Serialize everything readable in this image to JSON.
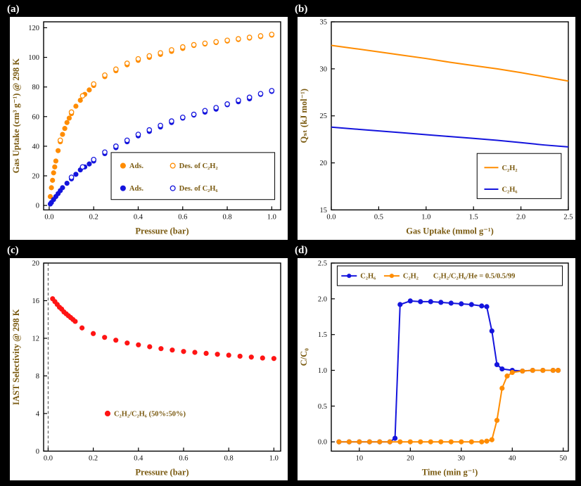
{
  "figure": {
    "panels": [
      {
        "label": "(a)"
      },
      {
        "label": "(b)"
      },
      {
        "label": "(c)"
      },
      {
        "label": "(d)"
      }
    ]
  },
  "colors": {
    "background": "#000000",
    "card": "#ffffff",
    "orange": "#FF8C00",
    "blue": "#1414DD",
    "red": "#FF1414",
    "label_gold": "#7a5a10",
    "tick": "#111111"
  },
  "chart_data": [
    {
      "id": "a",
      "type": "scatter",
      "title": "",
      "xlabel": "Pressure (bar)",
      "ylabel": "Gas Uptake (cm³ g⁻¹) @ 298 K",
      "xlim": [
        -0.025,
        1.04
      ],
      "ylim": [
        -3,
        124
      ],
      "xticks": [
        0.0,
        0.2,
        0.4,
        0.6,
        0.8,
        1.0
      ],
      "xticklabels": [
        "0.0",
        "0.2",
        "0.4",
        "0.6",
        "0.8",
        "1.0"
      ],
      "yticks": [
        0,
        20,
        40,
        60,
        80,
        100,
        120
      ],
      "yticklabels": [
        "0",
        "20",
        "40",
        "60",
        "80",
        "100",
        "120"
      ],
      "grid": false,
      "series": [
        {
          "name": "Ads. C₂H₂",
          "type": "scatter",
          "marker": "filled",
          "color": "#FF8C00",
          "x": [
            0.005,
            0.01,
            0.015,
            0.02,
            0.025,
            0.03,
            0.04,
            0.05,
            0.06,
            0.07,
            0.08,
            0.09,
            0.1,
            0.12,
            0.14,
            0.16,
            0.18,
            0.2,
            0.25,
            0.3,
            0.35,
            0.4,
            0.45,
            0.5,
            0.55,
            0.6,
            0.65,
            0.7,
            0.75,
            0.8,
            0.85,
            0.9,
            0.95,
            1.0
          ],
          "y": [
            6,
            12,
            17,
            22,
            26,
            30,
            37,
            43,
            48,
            52,
            56,
            59,
            62,
            67,
            71,
            75,
            78,
            81,
            87,
            91,
            95,
            98,
            100,
            102,
            104,
            106,
            108,
            109,
            110,
            111,
            112,
            113,
            114,
            115
          ]
        },
        {
          "name": "Des. of C₂H₂",
          "type": "scatter",
          "marker": "open",
          "color": "#FF8C00",
          "x": [
            0.05,
            0.1,
            0.15,
            0.2,
            0.25,
            0.3,
            0.35,
            0.4,
            0.45,
            0.5,
            0.55,
            0.6,
            0.65,
            0.7,
            0.75,
            0.8,
            0.85,
            0.9,
            0.95,
            1.0
          ],
          "y": [
            44,
            63,
            74,
            82,
            88,
            92,
            96,
            99,
            101,
            103,
            105,
            107,
            108.5,
            109.5,
            110.5,
            111.5,
            112.5,
            113.5,
            114.5,
            115.5
          ]
        },
        {
          "name": "Ads. C₂H₆",
          "type": "scatter",
          "marker": "filled",
          "color": "#1414DD",
          "x": [
            0.005,
            0.01,
            0.02,
            0.03,
            0.04,
            0.05,
            0.06,
            0.08,
            0.1,
            0.12,
            0.14,
            0.16,
            0.18,
            0.2,
            0.25,
            0.3,
            0.35,
            0.4,
            0.45,
            0.5,
            0.55,
            0.6,
            0.65,
            0.7,
            0.75,
            0.8,
            0.85,
            0.9,
            0.95,
            1.0
          ],
          "y": [
            1,
            2,
            4,
            6,
            8,
            10,
            12,
            15,
            18,
            21,
            24,
            26,
            28,
            30,
            35,
            39,
            43,
            47,
            50,
            53,
            56,
            59,
            61,
            63,
            65,
            68,
            70,
            72,
            75,
            77
          ]
        },
        {
          "name": "Des. of C₂H₆",
          "type": "scatter",
          "marker": "open",
          "color": "#1414DD",
          "x": [
            0.1,
            0.15,
            0.2,
            0.25,
            0.3,
            0.35,
            0.4,
            0.45,
            0.5,
            0.55,
            0.6,
            0.65,
            0.7,
            0.75,
            0.8,
            0.85,
            0.9,
            0.95,
            1.0
          ],
          "y": [
            19,
            26,
            31,
            36,
            40,
            44,
            48,
            51,
            54,
            57,
            59.5,
            61.5,
            64,
            66,
            68.5,
            71,
            73,
            75.5,
            77.5
          ]
        }
      ],
      "legend": {
        "box": {
          "fx": 0.285,
          "fy": 0.695,
          "fw": 0.69,
          "fh": 0.25
        },
        "items": [
          {
            "fx": 0.335,
            "fy": 0.765,
            "type": "filled",
            "color": "#FF8C00",
            "label": "Ads."
          },
          {
            "fx": 0.545,
            "fy": 0.765,
            "type": "open",
            "color": "#FF8C00",
            "label": "Des. of C₂H₂"
          },
          {
            "fx": 0.335,
            "fy": 0.885,
            "type": "filled",
            "color": "#1414DD",
            "label": "Ads."
          },
          {
            "fx": 0.545,
            "fy": 0.885,
            "type": "open",
            "color": "#1414DD",
            "label": "Des. of C₂H₆"
          }
        ]
      }
    },
    {
      "id": "b",
      "type": "line",
      "title": "",
      "xlabel": "Gas Uptake (mmol g⁻¹)",
      "ylabel": "Qₛₜ (kJ mol⁻¹)",
      "xlim": [
        0,
        2.5
      ],
      "ylim": [
        15,
        35
      ],
      "xticks": [
        0.0,
        0.5,
        1.0,
        1.5,
        2.0,
        2.5
      ],
      "xticklabels": [
        "0.0",
        "0.5",
        "1.0",
        "1.5",
        "2.0",
        "2.5"
      ],
      "yticks": [
        15,
        20,
        25,
        30,
        35
      ],
      "yticklabels": [
        "15",
        "20",
        "25",
        "30",
        "35"
      ],
      "grid": false,
      "series": [
        {
          "name": "C₂H₂",
          "type": "line",
          "color": "#FF8C00",
          "width": 2,
          "x": [
            0,
            0.25,
            0.5,
            0.75,
            1.0,
            1.25,
            1.5,
            1.75,
            2.0,
            2.25,
            2.5
          ],
          "y": [
            32.5,
            32.15,
            31.8,
            31.45,
            31.1,
            30.7,
            30.35,
            30.0,
            29.6,
            29.15,
            28.7
          ]
        },
        {
          "name": "C₂H₆",
          "type": "line",
          "color": "#1414DD",
          "width": 2,
          "x": [
            0,
            0.25,
            0.5,
            0.75,
            1.0,
            1.25,
            1.5,
            1.75,
            2.0,
            2.25,
            2.5
          ],
          "y": [
            23.8,
            23.6,
            23.4,
            23.2,
            23.0,
            22.8,
            22.6,
            22.4,
            22.15,
            21.9,
            21.7
          ]
        }
      ],
      "legend": {
        "box": {
          "fx": 0.615,
          "fy": 0.7,
          "fw": 0.355,
          "fh": 0.24
        },
        "items": [
          {
            "fx": 0.675,
            "fy": 0.775,
            "type": "line",
            "color": "#FF8C00",
            "label": "C₂H₂"
          },
          {
            "fx": 0.675,
            "fy": 0.89,
            "type": "line",
            "color": "#1414DD",
            "label": "C₂H₆"
          }
        ]
      }
    },
    {
      "id": "c",
      "type": "scatter",
      "title": "",
      "xlabel": "Pressure (bar)",
      "ylabel": "IAST Selectivity @ 298 K",
      "xlim": [
        -0.02,
        1.03
      ],
      "ylim": [
        0,
        20
      ],
      "xticks": [
        0.0,
        0.2,
        0.4,
        0.6,
        0.8,
        1.0
      ],
      "xticklabels": [
        "0.0",
        "0.2",
        "0.4",
        "0.6",
        "0.8",
        "1.0"
      ],
      "yticks": [
        0,
        4,
        8,
        12,
        16,
        20
      ],
      "yticklabels": [
        "0",
        "4",
        "8",
        "12",
        "16",
        "20"
      ],
      "grid": false,
      "vlines": [
        {
          "x": 0.0,
          "color": "#444444",
          "dash": "4 3"
        }
      ],
      "series": [
        {
          "name": "C₂H₂/C₂H₆ selectivity",
          "type": "scatter",
          "marker": "filled",
          "color": "#FF1414",
          "x": [
            0.02,
            0.03,
            0.04,
            0.05,
            0.06,
            0.07,
            0.08,
            0.09,
            0.1,
            0.11,
            0.12,
            0.15,
            0.2,
            0.25,
            0.3,
            0.35,
            0.4,
            0.45,
            0.5,
            0.55,
            0.6,
            0.65,
            0.7,
            0.75,
            0.8,
            0.85,
            0.9,
            0.95,
            1.0
          ],
          "y": [
            16.2,
            15.9,
            15.6,
            15.3,
            15.1,
            14.8,
            14.6,
            14.4,
            14.2,
            14.0,
            13.8,
            13.1,
            12.5,
            12.1,
            11.8,
            11.5,
            11.3,
            11.1,
            10.9,
            10.75,
            10.6,
            10.5,
            10.4,
            10.3,
            10.2,
            10.1,
            10.0,
            9.9,
            9.85
          ]
        }
      ],
      "legend": {
        "items": [
          {
            "fx": 0.27,
            "fy": 0.8,
            "type": "filled",
            "color": "#FF1414",
            "label": "C₂H₂/C₂H₆ (50%:50%)"
          }
        ]
      }
    },
    {
      "id": "d",
      "type": "line",
      "title": "",
      "xlabel": "Time (min g⁻¹)",
      "ylabel": "C/C₀",
      "xlim": [
        4.5,
        51
      ],
      "ylim": [
        -0.13,
        2.5
      ],
      "xticks": [
        10,
        20,
        30,
        40,
        50
      ],
      "xticklabels": [
        "10",
        "20",
        "30",
        "40",
        "50"
      ],
      "yticks": [
        0.0,
        0.5,
        1.0,
        1.5,
        2.0,
        2.5
      ],
      "yticklabels": [
        "0.0",
        "0.5",
        "1.0",
        "1.5",
        "2.0",
        "2.5"
      ],
      "grid": false,
      "series": [
        {
          "name": "C₂H₆",
          "type": "linemarker",
          "color": "#1414DD",
          "width": 2,
          "r": 3.2,
          "x": [
            6,
            8,
            10,
            12,
            14,
            16,
            17,
            18,
            20,
            22,
            24,
            26,
            28,
            30,
            32,
            34,
            35,
            36,
            37,
            38,
            40,
            42,
            44,
            46,
            48,
            49
          ],
          "y": [
            0,
            0,
            0,
            0,
            0,
            0,
            0.05,
            1.92,
            1.97,
            1.96,
            1.96,
            1.95,
            1.94,
            1.93,
            1.92,
            1.9,
            1.89,
            1.55,
            1.08,
            1.02,
            1.0,
            0.99,
            1.0,
            1.0,
            1.0,
            1.0
          ]
        },
        {
          "name": "C₂H₂",
          "type": "linemarker",
          "color": "#FF8C00",
          "width": 2,
          "r": 3.2,
          "x": [
            6,
            8,
            10,
            12,
            14,
            16,
            18,
            20,
            22,
            24,
            26,
            28,
            30,
            32,
            34,
            35,
            36,
            37,
            38,
            39,
            40,
            42,
            44,
            46,
            48,
            49
          ],
          "y": [
            0,
            0,
            0,
            0,
            0,
            0,
            0,
            0,
            0,
            0,
            0,
            0,
            0,
            0,
            0,
            0.01,
            0.03,
            0.3,
            0.75,
            0.92,
            0.97,
            0.99,
            1.0,
            1.0,
            1.0,
            1.0
          ]
        }
      ],
      "legend": {
        "box": {
          "fx": 0.025,
          "fy": 0.015,
          "fw": 0.95,
          "fh": 0.105
        },
        "items": [
          {
            "fx": 0.075,
            "fy": 0.068,
            "type": "linemarker",
            "color": "#1414DD",
            "label": "C₂H₆"
          },
          {
            "fx": 0.255,
            "fy": 0.068,
            "type": "linemarker",
            "color": "#FF8C00",
            "label": "C₂H₂"
          },
          {
            "fx": 0.43,
            "fy": 0.068,
            "type": "text",
            "color": "#7a5a10",
            "label": "C₂H₂/C₂H₆/He = 0.5/0.5/99"
          }
        ]
      }
    }
  ]
}
